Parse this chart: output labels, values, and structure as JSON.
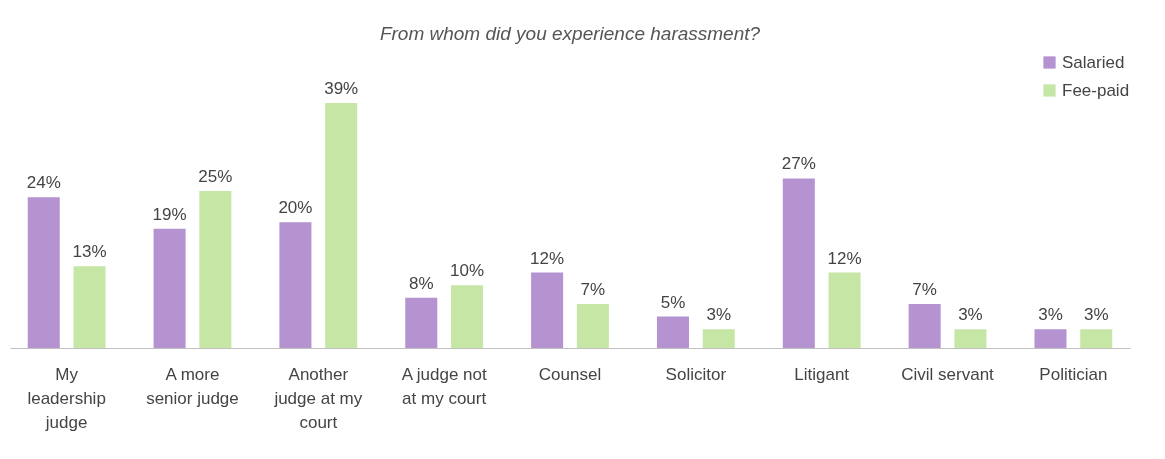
{
  "chart_data": {
    "type": "bar",
    "title": "From whom did you experience harassment?",
    "categories": [
      "My leadership judge",
      "A more senior judge",
      "Another judge at my court",
      "A judge not at my court",
      "Counsel",
      "Solicitor",
      "Litigant",
      "Civil servant",
      "Politician"
    ],
    "series": [
      {
        "name": "Salaried",
        "color": "#b592d0",
        "values": [
          24,
          19,
          20,
          8,
          12,
          5,
          27,
          7,
          3
        ],
        "value_labels": [
          "24%",
          "19%",
          "20%",
          "8%",
          "12%",
          "5%",
          "27%",
          "7%",
          "3%"
        ]
      },
      {
        "name": "Fee-paid",
        "color": "#c6e6a6",
        "values": [
          13,
          25,
          39,
          10,
          7,
          3,
          12,
          3,
          3
        ],
        "value_labels": [
          "13%",
          "25%",
          "39%",
          "10%",
          "7%",
          "3%",
          "12%",
          "3%",
          "3%"
        ]
      }
    ],
    "legend": "top right",
    "grid": false
  }
}
